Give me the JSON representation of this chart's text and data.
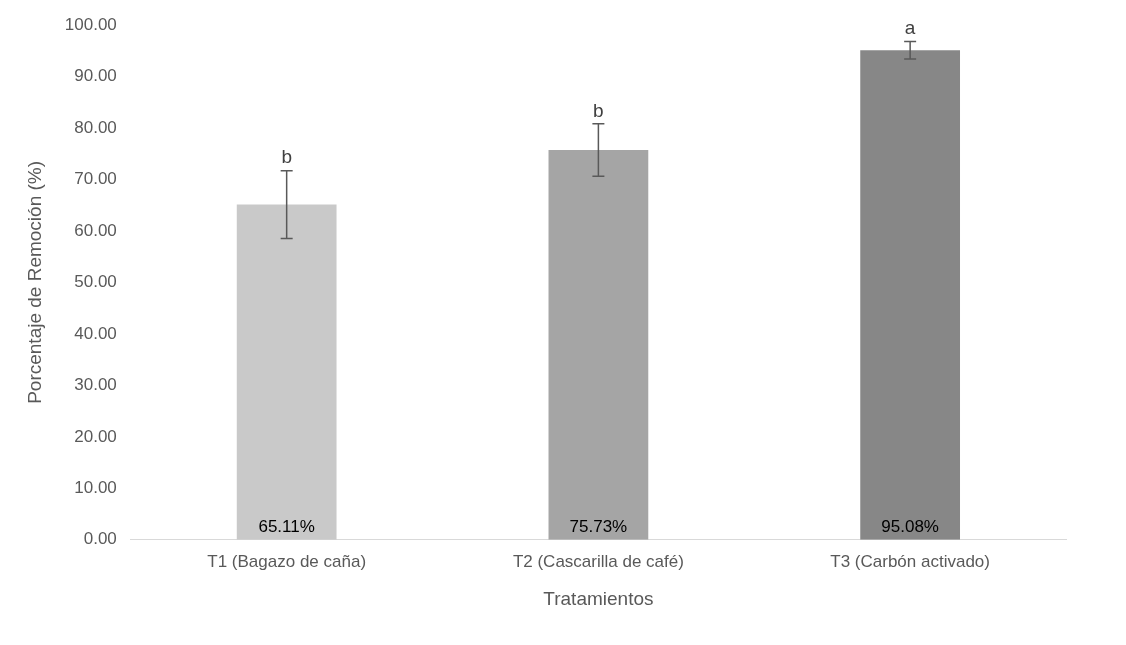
{
  "chart_data": {
    "type": "bar",
    "xlabel": "Tratamientos",
    "ylabel": "Porcentaje de Remoción (%)",
    "categories": [
      "T1 (Bagazo de caña)",
      "T2 (Cascarilla de café)",
      "T3 (Carbón activado)"
    ],
    "values": [
      65.11,
      75.73,
      95.08
    ],
    "colors": [
      "#c9c9c9",
      "#a5a5a5",
      "#878787"
    ],
    "errors": [
      6.6,
      5.1,
      1.7
    ],
    "value_labels": [
      "65.11%",
      "75.73%",
      "95.08%"
    ],
    "ylim": [
      0,
      100
    ],
    "yticks": [
      {
        "value": 0,
        "label": "0.00"
      },
      {
        "value": 10,
        "label": "10.00"
      },
      {
        "value": 20,
        "label": "20.00"
      },
      {
        "value": 30,
        "label": "30.00"
      },
      {
        "value": 40,
        "label": "40.00"
      },
      {
        "value": 50,
        "label": "50.00"
      },
      {
        "value": 60,
        "label": "60.00"
      },
      {
        "value": 70,
        "label": "70.00"
      },
      {
        "value": 80,
        "label": "80.00"
      },
      {
        "value": 90,
        "label": "90.00"
      },
      {
        "value": 100,
        "label": "100.00"
      }
    ],
    "annotations": [
      {
        "text": "b",
        "x": "T1 (Bagazo de caña)",
        "y": 71.7
      },
      {
        "text": "b",
        "x": "T2 (Cascarilla de café)",
        "y": 80.8
      },
      {
        "text": "a",
        "x": "T3 (Carbón activado)",
        "y": 96.8
      }
    ],
    "legend": false
  }
}
